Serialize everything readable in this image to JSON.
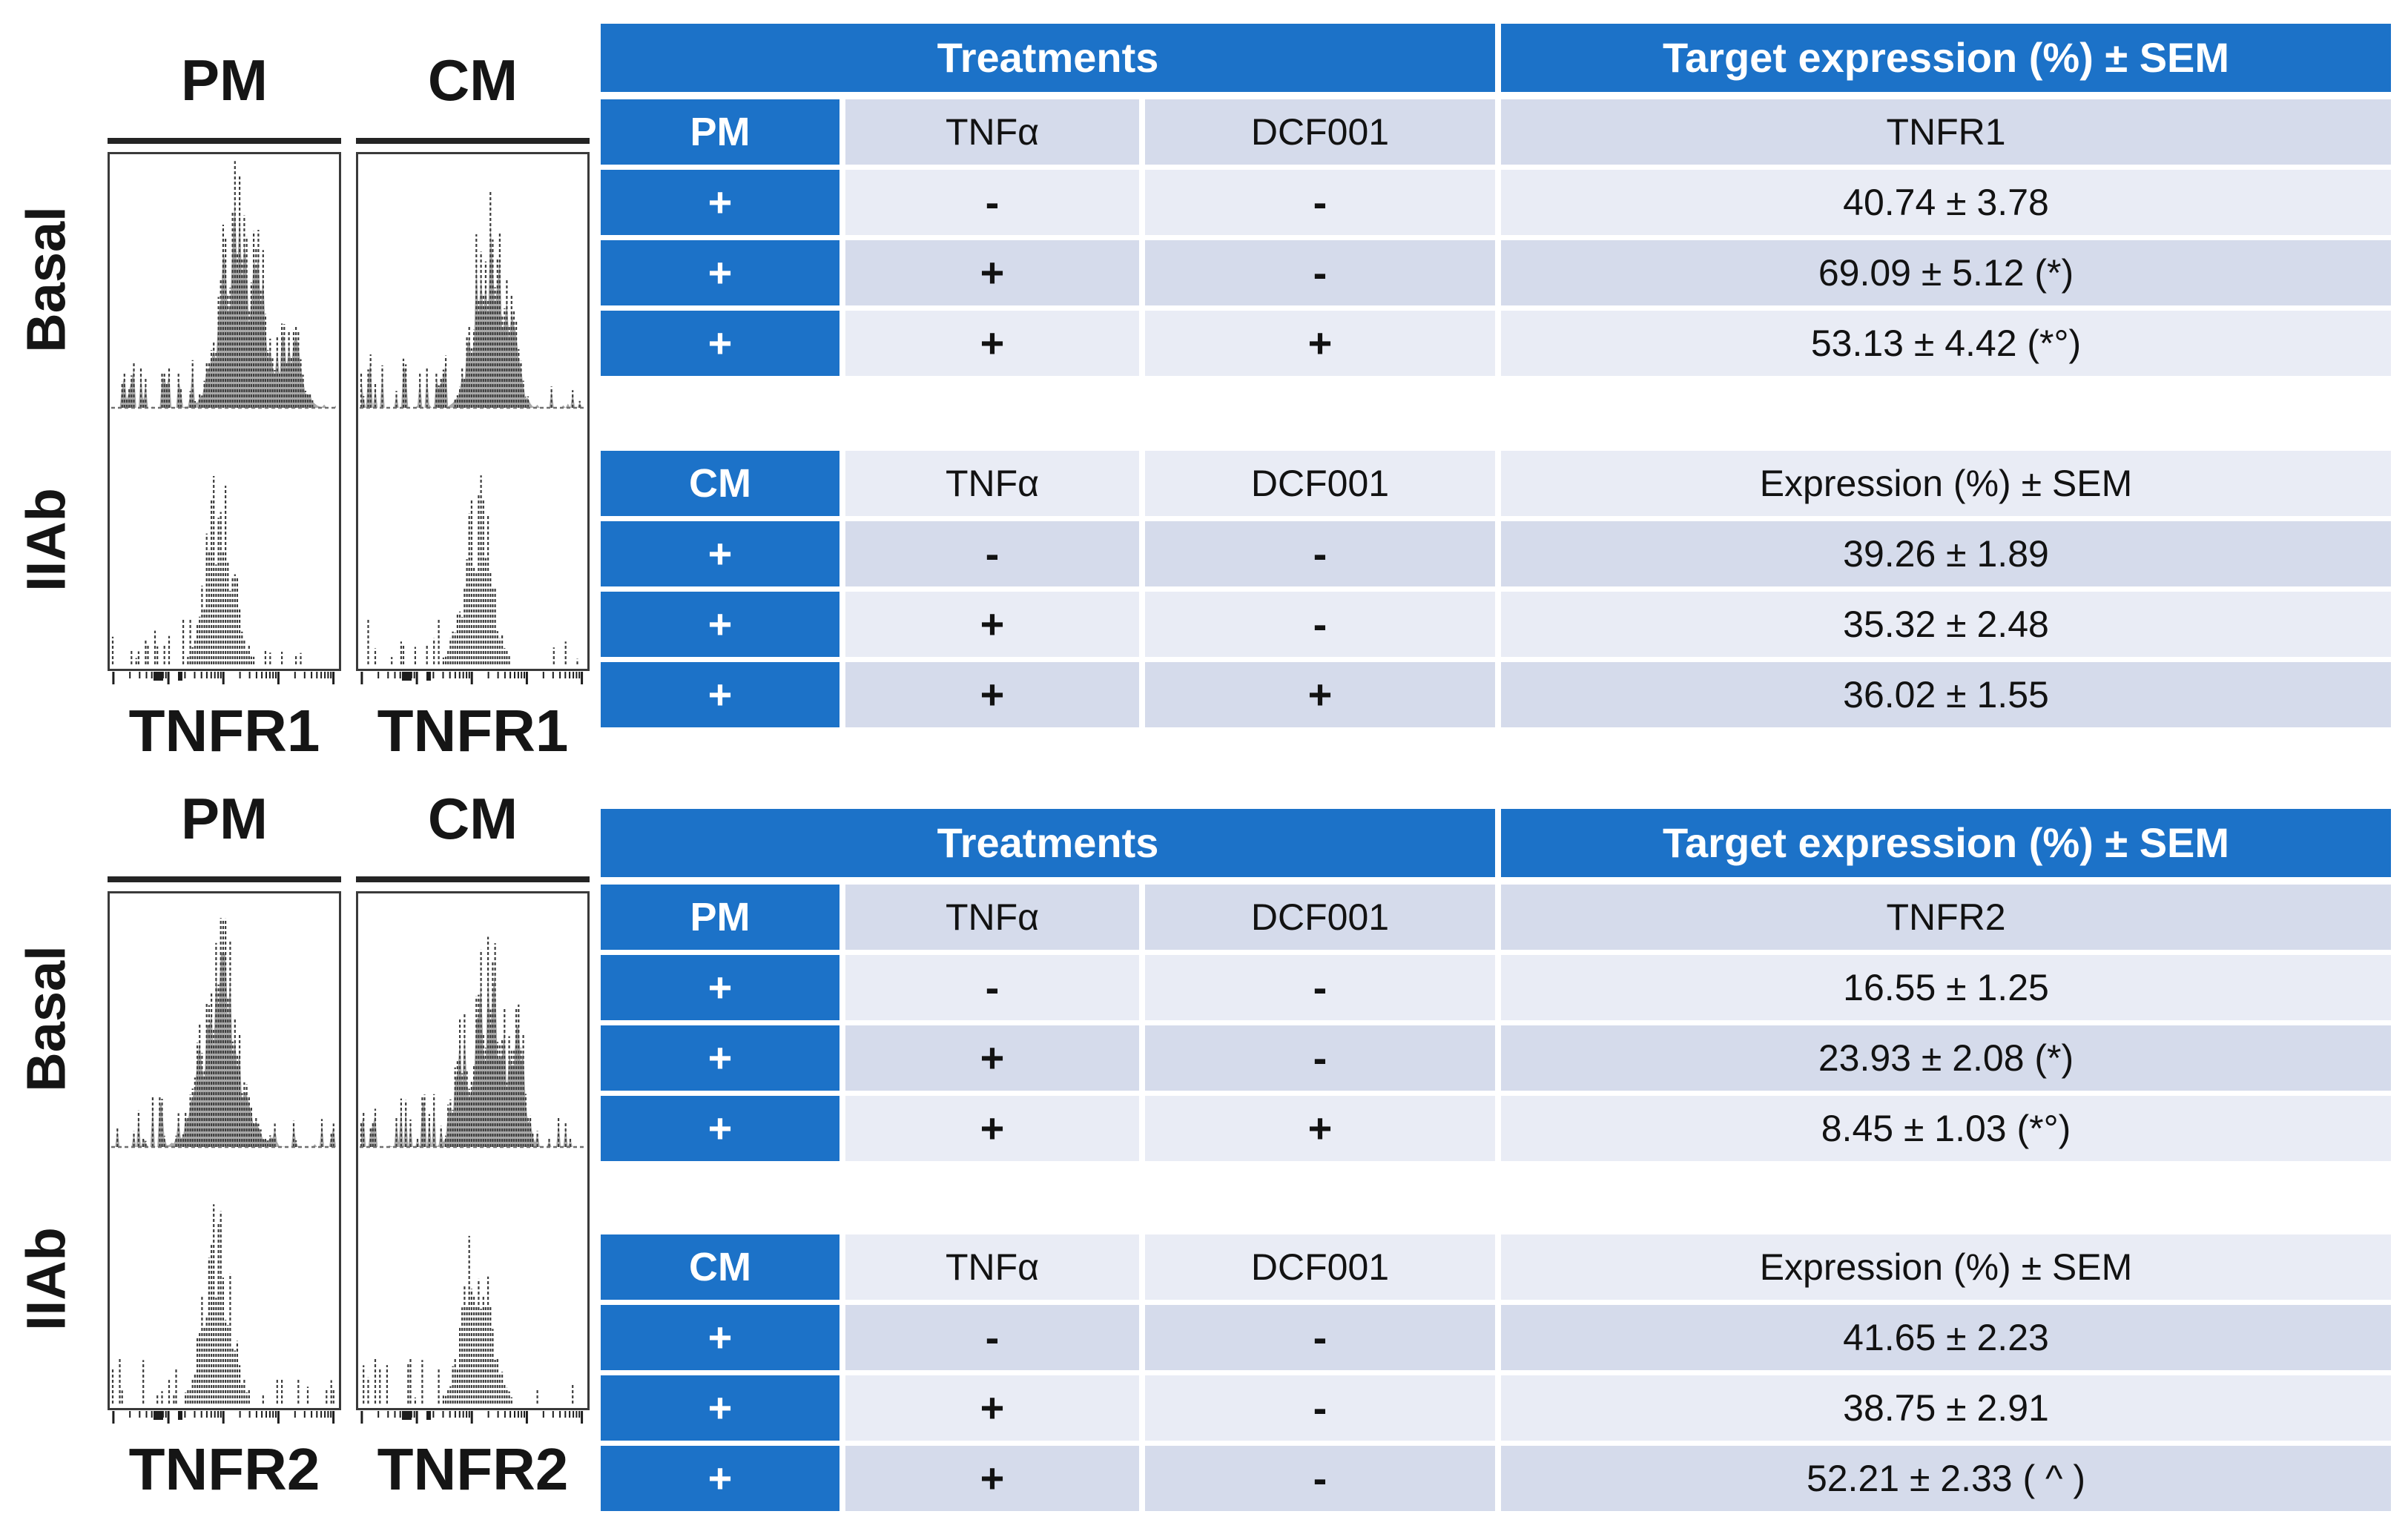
{
  "colors": {
    "accent_blue": "#1C72C8",
    "row_dark": "#D5DBEB",
    "row_light": "#E9ECF5",
    "hist_fill_gray": "#A9A9A9",
    "hist_outline": "#3d3d3d"
  },
  "histograms": {
    "b1": {
      "col_left": "PM",
      "col_right": "CM",
      "row_top": "Basal",
      "row_bottom": "IIAb",
      "xlabel_left": "TNFR1",
      "xlabel_right": "TNFR1"
    },
    "b2": {
      "col_left": "PM",
      "col_right": "CM",
      "row_top": "Basal",
      "row_bottom": "IIAb",
      "xlabel_left": "TNFR2",
      "xlabel_right": "TNFR2"
    }
  },
  "tables": {
    "t1": {
      "treatments_header": "Treatments",
      "target_header": "Target expression (%) ± SEM",
      "sub": {
        "label": "PM",
        "c2": "TNFα",
        "c3": "DCF001",
        "c4": "TNFR1"
      },
      "rows": [
        {
          "c1": "+",
          "c2": "-",
          "c3": "-",
          "c4": "40.74 ± 3.78"
        },
        {
          "c1": "+",
          "c2": "+",
          "c3": "-",
          "c4": "69.09 ± 5.12 (*)"
        },
        {
          "c1": "+",
          "c2": "+",
          "c3": "+",
          "c4": "53.13 ± 4.42 (*°)"
        }
      ]
    },
    "t2": {
      "sub": {
        "label": "CM",
        "c2": "TNFα",
        "c3": "DCF001",
        "c4": "Expression (%) ± SEM"
      },
      "rows": [
        {
          "c1": "+",
          "c2": "-",
          "c3": "-",
          "c4": "39.26 ± 1.89"
        },
        {
          "c1": "+",
          "c2": "+",
          "c3": "-",
          "c4": "35.32 ± 2.48"
        },
        {
          "c1": "+",
          "c2": "+",
          "c3": "+",
          "c4": "36.02 ± 1.55"
        }
      ]
    },
    "t3": {
      "treatments_header": "Treatments",
      "target_header": "Target expression (%) ± SEM",
      "sub": {
        "label": "PM",
        "c2": "TNFα",
        "c3": "DCF001",
        "c4": "TNFR2"
      },
      "rows": [
        {
          "c1": "+",
          "c2": "-",
          "c3": "-",
          "c4": "16.55 ± 1.25"
        },
        {
          "c1": "+",
          "c2": "+",
          "c3": "-",
          "c4": "23.93 ± 2.08 (*)"
        },
        {
          "c1": "+",
          "c2": "+",
          "c3": "+",
          "c4": "8.45 ± 1.03 (*°)"
        }
      ]
    },
    "t4": {
      "sub": {
        "label": "CM",
        "c2": "TNFα",
        "c3": "DCF001",
        "c4": "Expression (%) ± SEM"
      },
      "rows": [
        {
          "c1": "+",
          "c2": "-",
          "c3": "-",
          "c4": "41.65 ± 2.23"
        },
        {
          "c1": "+",
          "c2": "+",
          "c3": "-",
          "c4": "38.75 ± 2.91"
        },
        {
          "c1": "+",
          "c2": "+",
          "c3": "-",
          "c4": "52.21 ± 2.33 ( ^ )"
        }
      ]
    }
  },
  "chart_data": [
    {
      "type": "table",
      "title": "TNFR1 PM",
      "columns": [
        "PM",
        "TNFα",
        "DCF001",
        "TNFR1"
      ],
      "rows": [
        [
          "+",
          "-",
          "-",
          "40.74 ± 3.78"
        ],
        [
          "+",
          "+",
          "-",
          "69.09 ± 5.12 (*)"
        ],
        [
          "+",
          "+",
          "+",
          "53.13 ± 4.42 (*°)"
        ]
      ]
    },
    {
      "type": "table",
      "title": "TNFR1 CM",
      "columns": [
        "CM",
        "TNFα",
        "DCF001",
        "Expression (%) ± SEM"
      ],
      "rows": [
        [
          "+",
          "-",
          "-",
          "39.26 ± 1.89"
        ],
        [
          "+",
          "+",
          "-",
          "35.32 ± 2.48"
        ],
        [
          "+",
          "+",
          "+",
          "36.02 ± 1.55"
        ]
      ]
    },
    {
      "type": "table",
      "title": "TNFR2 PM",
      "columns": [
        "PM",
        "TNFα",
        "DCF001",
        "TNFR2"
      ],
      "rows": [
        [
          "+",
          "-",
          "-",
          "16.55 ± 1.25"
        ],
        [
          "+",
          "+",
          "-",
          "23.93 ± 2.08 (*)"
        ],
        [
          "+",
          "+",
          "+",
          "8.45 ± 1.03 (*°)"
        ]
      ]
    },
    {
      "type": "table",
      "title": "TNFR2 CM",
      "columns": [
        "CM",
        "TNFα",
        "DCF001",
        "Expression (%) ± SEM"
      ],
      "rows": [
        [
          "+",
          "-",
          "-",
          "41.65 ± 2.23"
        ],
        [
          "+",
          "+",
          "-",
          "38.75 ± 2.91"
        ],
        [
          "+",
          "+",
          "-",
          "52.21 ± 2.33 ( ^ )"
        ]
      ]
    },
    {
      "type": "area",
      "title": "Flow cytometry overlay histograms (TNFR1)",
      "xlabel": "TNFR1",
      "series": [
        {
          "name": "PM Basal (gray filled)"
        },
        {
          "name": "CM Basal (gray filled)"
        },
        {
          "name": "PM IIAb (open)"
        },
        {
          "name": "CM IIAb (open)"
        }
      ]
    },
    {
      "type": "area",
      "title": "Flow cytometry overlay histograms (TNFR2)",
      "xlabel": "TNFR2",
      "series": [
        {
          "name": "PM Basal (gray filled)"
        },
        {
          "name": "CM Basal (gray filled)"
        },
        {
          "name": "PM IIAb (open)"
        },
        {
          "name": "CM IIAb (open)"
        }
      ]
    }
  ]
}
